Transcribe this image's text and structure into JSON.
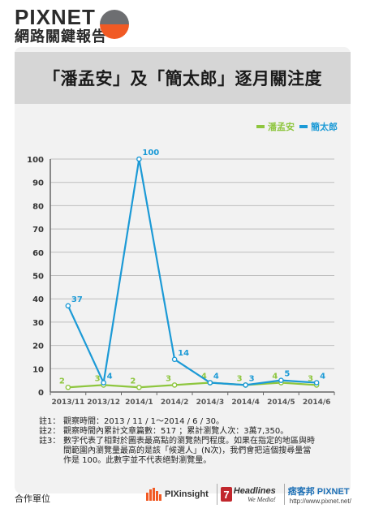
{
  "brand": {
    "title": "PIXNET",
    "subtitle": "網路關鍵報告"
  },
  "chart_title": "「潘孟安」及「簡太郎」逐月關注度",
  "legend": {
    "series1": "潘孟安",
    "series2": "簡太郎"
  },
  "colors": {
    "series1": "#8ec63f",
    "series2": "#1c9ad6",
    "logo_orange": "#f15a24",
    "logo_gray": "#6d6e71"
  },
  "chart_data": {
    "type": "line",
    "categories": [
      "2013/11",
      "2013/12",
      "2014/1",
      "2014/2",
      "2014/3",
      "2014/4",
      "2014/5",
      "2014/6"
    ],
    "y_ticks": [
      "0",
      "10",
      "20",
      "30",
      "40",
      "50",
      "60",
      "70",
      "80",
      "90",
      "100"
    ],
    "ylim": [
      0,
      100
    ],
    "grid": true,
    "legend_position": "top-right",
    "series": [
      {
        "name": "潘孟安",
        "values": [
          2,
          3,
          2,
          3,
          4,
          3,
          4,
          3
        ],
        "labels": [
          "2",
          "3",
          "2",
          "3",
          "4",
          "3",
          "4",
          "3"
        ]
      },
      {
        "name": "簡太郎",
        "values": [
          37,
          4,
          100,
          14,
          4,
          3,
          5,
          4
        ],
        "labels": [
          "37",
          "4",
          "100",
          "14",
          "4",
          "3",
          "5",
          "4"
        ]
      }
    ]
  },
  "notes": [
    {
      "key": "註1：",
      "text": "觀察時間：2013 / 11 / 1～2014 / 6 / 30。"
    },
    {
      "key": "註2：",
      "text": "觀察時間內累計文章篇數：517 ；累計瀏覽人次：3萬7,350。"
    },
    {
      "key": "註3：",
      "text": "數字代表了相對於圖表最高點的瀏覽熱門程度。如果在指定的地區與時間範圍內瀏覽量最高的是該「候選人」(N次)，我們會把這個搜尋量當作是 100。此數字並不代表絕對瀏覽量。"
    }
  ],
  "footer": {
    "label": "合作單位",
    "partner1": "PIXinsight",
    "partner2": "Headlines",
    "partner2_tagline": "We Media!",
    "partner3": "痞客邦 PIXNET",
    "partner3_url": "http://www.pixnet.net/"
  }
}
